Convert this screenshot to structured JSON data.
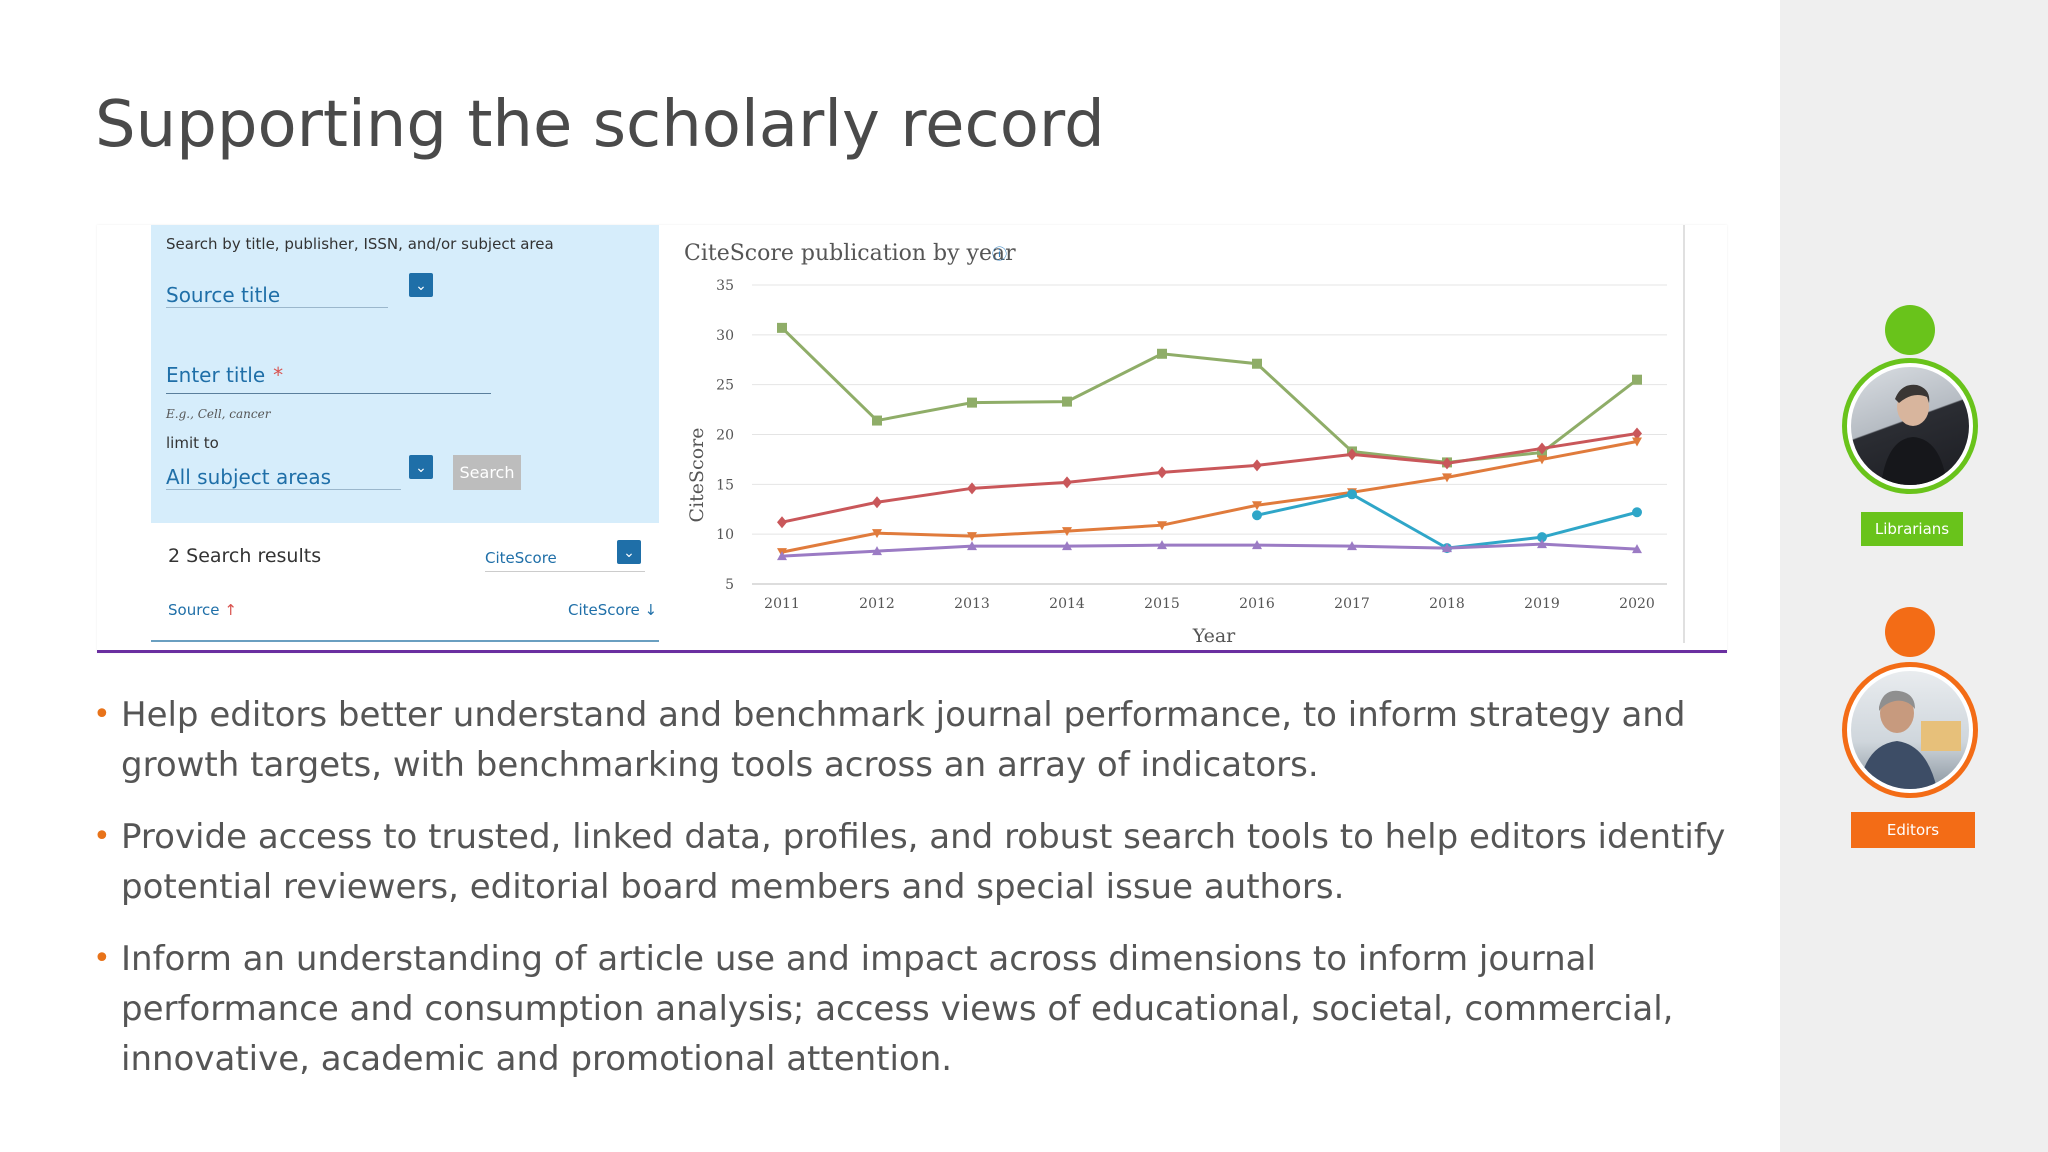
{
  "slide": {
    "title": "Supporting the scholarly record"
  },
  "search": {
    "heading": "Search by title, publisher, ISSN, and/or subject area",
    "source_title": "Source title",
    "enter_title": "Enter title",
    "required_mark": "*",
    "hint": "E.g., Cell, cancer",
    "limit_to": "limit to",
    "subject_areas": "All subject areas",
    "search_button": "Search",
    "results_count": "2 Search results",
    "sort_select": "CiteScore",
    "col_source": "Source",
    "col_citescore": "CiteScore",
    "dropdown_glyph": "⌄",
    "arrow_up": "↑",
    "arrow_down": "↓"
  },
  "chart_data": {
    "type": "line",
    "title": "CiteScore publication by year",
    "info_icon": "ⓘ",
    "xlabel": "Year",
    "ylabel": "CiteScore",
    "x": [
      2011,
      2012,
      2013,
      2014,
      2015,
      2016,
      2017,
      2018,
      2019,
      2020
    ],
    "ylim": [
      5,
      35
    ],
    "yticks": [
      5,
      10,
      15,
      20,
      25,
      30,
      35
    ],
    "grid": true,
    "series": [
      {
        "color": "#8fad68",
        "marker": "square",
        "values": [
          30.7,
          21.4,
          23.2,
          23.3,
          28.1,
          27.1,
          18.3,
          17.2,
          18.2,
          25.5
        ]
      },
      {
        "color": "#c9575a",
        "marker": "diamond",
        "values": [
          11.2,
          13.2,
          14.6,
          15.2,
          16.2,
          16.9,
          18.0,
          17.1,
          18.6,
          20.1
        ]
      },
      {
        "color": "#e07b3c",
        "marker": "triangle-down",
        "values": [
          8.2,
          10.1,
          9.8,
          10.3,
          10.9,
          12.9,
          14.2,
          15.7,
          17.5,
          19.3
        ]
      },
      {
        "color": "#2fa6c8",
        "marker": "circle",
        "values": [
          null,
          null,
          null,
          null,
          null,
          11.9,
          14.0,
          8.6,
          9.7,
          12.2
        ]
      },
      {
        "color": "#9b7bc4",
        "marker": "triangle-up",
        "values": [
          7.8,
          8.3,
          8.8,
          8.8,
          8.9,
          8.9,
          8.8,
          8.6,
          9.0,
          8.5
        ]
      }
    ]
  },
  "bullets": [
    "Help editors better understand and benchmark journal performance, to inform strategy and growth targets, with benchmarking tools across an array of indicators.",
    " Provide access to trusted, linked data, profiles, and robust search tools to help editors identify potential reviewers, editorial board members and special issue authors.",
    "Inform an understanding of article use and impact across dimensions to inform journal performance and consumption analysis; access views of educational, societal, commercial, innovative, academic and promotional attention."
  ],
  "bullet_glyph": "•",
  "personas": [
    {
      "label": "Librarians",
      "color": "#69c31b"
    },
    {
      "label": "Editors",
      "color": "#f36c16"
    }
  ]
}
